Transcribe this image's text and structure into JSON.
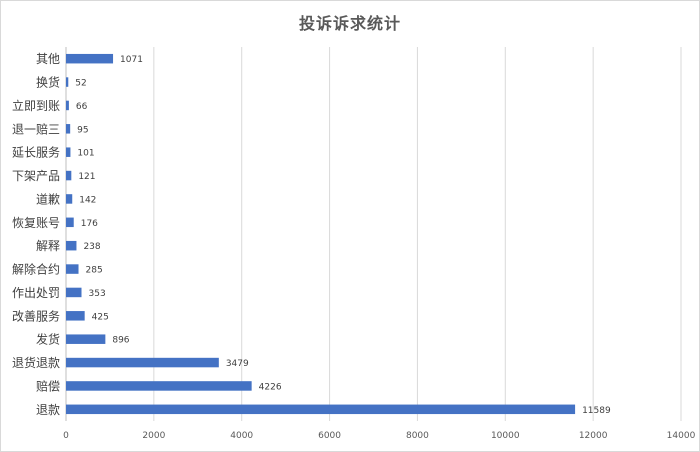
{
  "chart_data": {
    "type": "bar",
    "orientation": "horizontal",
    "title": "投诉诉求统计",
    "categories": [
      "其他",
      "换货",
      "立即到账",
      "退一赔三",
      "延长服务",
      "下架产品",
      "道歉",
      "恢复账号",
      "解释",
      "解除合约",
      "作出处罚",
      "改善服务",
      "发货",
      "退货退款",
      "赔偿",
      "退款"
    ],
    "values": [
      1071,
      52,
      66,
      95,
      101,
      121,
      142,
      176,
      238,
      285,
      353,
      425,
      896,
      3479,
      4226,
      11589
    ],
    "xticks": [
      "0",
      "2000",
      "4000",
      "6000",
      "8000",
      "10000",
      "12000",
      "14000"
    ],
    "xlim": [
      0,
      14000
    ],
    "grid": true,
    "bar_color": "#4472C4"
  }
}
